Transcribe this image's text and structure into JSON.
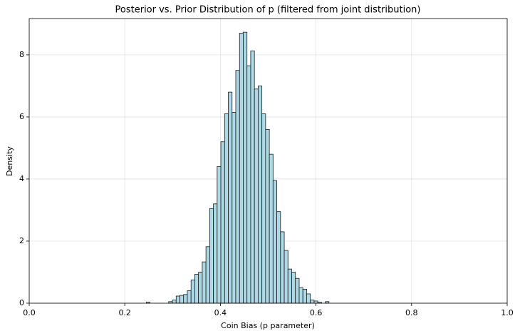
{
  "chart_data": {
    "type": "histogram",
    "title": "Posterior vs. Prior Distribution of p (filtered from joint distribution)",
    "x_label": "Coin Bias (p parameter)",
    "y_label": "Density",
    "color": "#add8e6",
    "edge_color": "#1a1a1a",
    "grid": true,
    "bins": [
      0.245,
      0.2528,
      0.2606,
      0.2684,
      0.2762,
      0.284,
      0.2918,
      0.2996,
      0.3074,
      0.3152,
      0.323,
      0.3308,
      0.3386,
      0.3464,
      0.3542,
      0.362,
      0.3698,
      0.3776,
      0.3854,
      0.3932,
      0.401,
      0.4088,
      0.4166,
      0.4244,
      0.4322,
      0.44,
      0.4478,
      0.4556,
      0.4634,
      0.4712,
      0.479,
      0.4868,
      0.4946,
      0.5024,
      0.5102,
      0.518,
      0.5258,
      0.5336,
      0.5414,
      0.5492,
      0.557,
      0.5648,
      0.5726,
      0.5804,
      0.5882,
      0.596,
      0.6038,
      0.6116,
      0.6194,
      0.6272,
      0.635
    ],
    "values": [
      0.03,
      0,
      0,
      0,
      0,
      0,
      0.05,
      0.1,
      0.23,
      0.25,
      0.28,
      0.4,
      0.75,
      0.93,
      1.0,
      1.33,
      1.82,
      3.05,
      3.2,
      4.4,
      5.2,
      6.1,
      6.8,
      6.15,
      7.5,
      8.7,
      8.73,
      7.65,
      8.13,
      6.9,
      7.0,
      6.1,
      5.6,
      4.8,
      3.95,
      2.95,
      2.3,
      1.7,
      1.1,
      1.0,
      0.8,
      0.5,
      0.45,
      0.3,
      0.1,
      0.07,
      0.03,
      0,
      0.05,
      0
    ],
    "xlim": [
      0,
      1
    ],
    "ylim": [
      0,
      9.17
    ],
    "xticks": [
      {
        "value": 0,
        "label": "0.0"
      },
      {
        "value": 0.2,
        "label": "0.2"
      },
      {
        "value": 0.4,
        "label": "0.4"
      },
      {
        "value": 0.6,
        "label": "0.6"
      },
      {
        "value": 0.8,
        "label": "0.8"
      },
      {
        "value": 1,
        "label": "1.0"
      }
    ],
    "yticks": [
      0,
      2,
      4,
      6,
      8
    ]
  }
}
